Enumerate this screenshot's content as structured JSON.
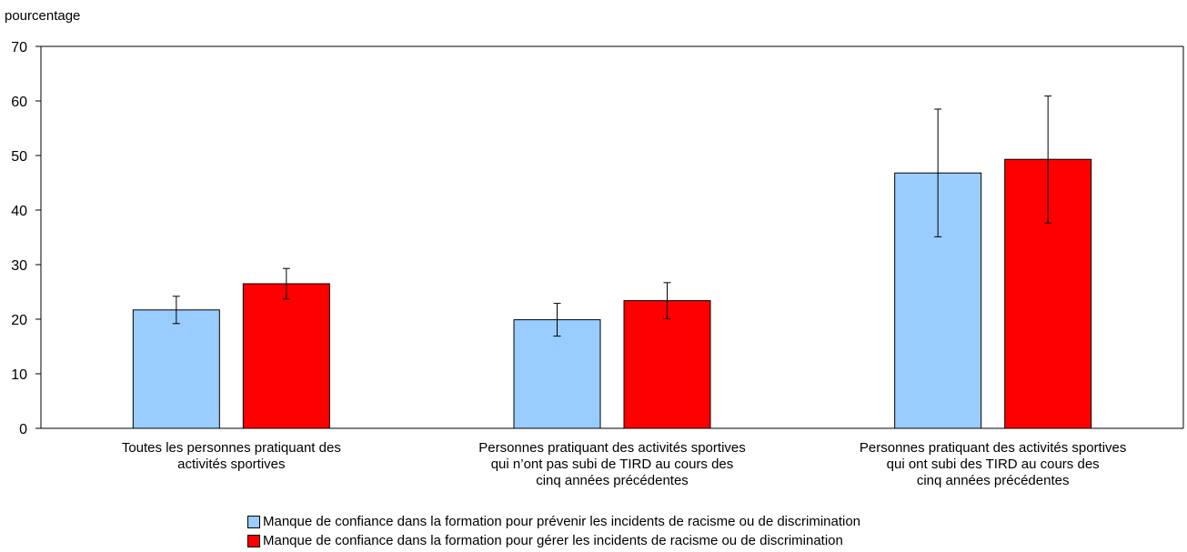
{
  "chart_data": {
    "type": "bar",
    "ylabel": "pourcentage",
    "ylim": [
      0,
      70
    ],
    "yticks": [
      0,
      10,
      20,
      30,
      40,
      50,
      60,
      70
    ],
    "grid": false,
    "legend_position": "bottom",
    "categories": [
      [
        "Toutes les personnes pratiquant des",
        "activités sportives"
      ],
      [
        "Personnes pratiquant des activités sportives",
        "qui n’ont pas subi de TIRD au cours des",
        "cinq années précédentes"
      ],
      [
        "Personnes pratiquant des activités sportives",
        "qui ont subi des TIRD au cours des",
        "cinq années précédentes"
      ]
    ],
    "series": [
      {
        "name": "Manque de confiance dans la formation pour prévenir les incidents de racisme ou de discrimination",
        "color": "#99ccff",
        "values": [
          21.7,
          19.9,
          46.8
        ],
        "error_low": [
          19.2,
          16.9,
          35.1
        ],
        "error_high": [
          24.2,
          22.9,
          58.5
        ]
      },
      {
        "name": "Manque de confiance dans la formation pour gérer les incidents de racisme ou de discrimination",
        "color": "#ff0000",
        "values": [
          26.5,
          23.4,
          49.3
        ],
        "error_low": [
          23.7,
          20.1,
          37.6
        ],
        "error_high": [
          29.3,
          26.7,
          60.9
        ]
      }
    ]
  }
}
